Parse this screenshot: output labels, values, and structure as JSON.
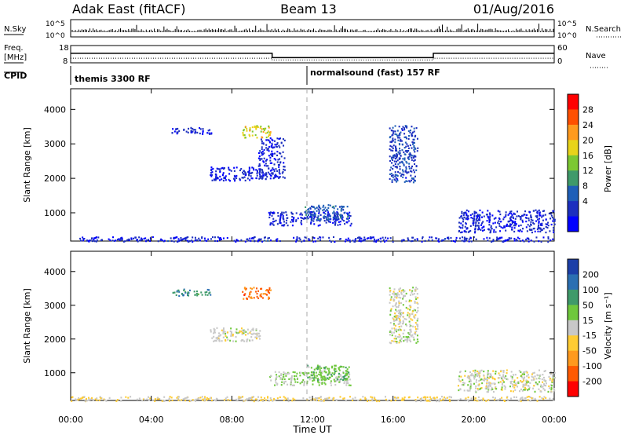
{
  "header": {
    "station": "Adak East (fitACF)",
    "beam": "Beam 13",
    "date": "01/Aug/2016"
  },
  "top_panel": {
    "left_label": "N.Sky",
    "right_label": "N.Search",
    "tick_top": "10^5",
    "tick_bottom": "10^0"
  },
  "freq_panel": {
    "left_label_1": "Freq.",
    "left_label_2": "[MHz]",
    "right_label": "Nave",
    "left_ticks": [
      "18",
      "8"
    ],
    "right_ticks": [
      "60",
      "0"
    ],
    "freq_mhz": {
      "times_h": [
        0,
        10.0,
        10.0,
        18.0,
        18.0,
        24
      ],
      "values": [
        13.5,
        13.5,
        11.0,
        11.0,
        13.5,
        13.5
      ]
    },
    "nave": {
      "times_h": [
        0,
        10.0,
        10.0,
        18.0,
        18.0,
        24
      ],
      "values": [
        16,
        16,
        10,
        10,
        16,
        16
      ]
    }
  },
  "cpid_panel": {
    "label": "CPID",
    "segment_1": "themis 3300 RF",
    "segment_2": "normalsound (fast) 157 RF",
    "boundary_h": 12.0
  },
  "power_colorbar": {
    "label": "Power [dB]",
    "ticks": [
      "28",
      "24",
      "20",
      "16",
      "12",
      "8",
      "4"
    ],
    "colors": [
      "#ff0000",
      "#ff5000",
      "#ff9a1e",
      "#e8d31a",
      "#7cc832",
      "#3f9a6a",
      "#1f5fb8",
      "#1c2fbf",
      "#0000ff"
    ]
  },
  "velocity_colorbar": {
    "label": "Velocity [m s⁻¹]",
    "ticks": [
      "200",
      "100",
      "50",
      "15",
      "-15",
      "-50",
      "-100",
      "-200"
    ],
    "colors": [
      "#1c3fa8",
      "#2b6fb2",
      "#3f9a6a",
      "#6fc83c",
      "#c8c8c8",
      "#ffcc33",
      "#ff9a1e",
      "#ff5a00",
      "#ff0000"
    ]
  },
  "x_axis": {
    "label": "Time UT",
    "ticks": [
      "00:00",
      "04:00",
      "08:00",
      "12:00",
      "16:00",
      "20:00",
      "00:00"
    ]
  },
  "chart_data": [
    {
      "type": "heatmap",
      "panel": "power",
      "xlabel": "Time UT",
      "ylabel": "Slant Range [km]",
      "xlim_h": [
        0,
        24
      ],
      "ylim_km": [
        180,
        4600
      ],
      "yticks": [
        1000,
        2000,
        3000,
        4000
      ],
      "clim": [
        0,
        30
      ],
      "clusters": [
        {
          "t": [
            5.0,
            7.0
          ],
          "r": [
            3300,
            3500
          ],
          "v": 4
        },
        {
          "t": [
            8.5,
            9.9
          ],
          "r": [
            3200,
            3550
          ],
          "v": 18
        },
        {
          "t": [
            6.9,
            9.4
          ],
          "r": [
            1950,
            2350
          ],
          "v": 4
        },
        {
          "t": [
            9.3,
            10.6
          ],
          "r": [
            2000,
            3200
          ],
          "v": 4
        },
        {
          "t": [
            9.8,
            13.9
          ],
          "r": [
            650,
            1050
          ],
          "v": 4
        },
        {
          "t": [
            11.6,
            13.8
          ],
          "r": [
            800,
            1250
          ],
          "v": 8
        },
        {
          "t": [
            19.2,
            24.0
          ],
          "r": [
            450,
            1100
          ],
          "v": 4
        },
        {
          "t": [
            15.8,
            17.2
          ],
          "r": [
            1900,
            3550
          ],
          "v": 6
        },
        {
          "t": [
            0.0,
            24.0
          ],
          "r": [
            180,
            320
          ],
          "v": 4
        }
      ]
    },
    {
      "type": "heatmap",
      "panel": "velocity",
      "xlabel": "Time UT",
      "ylabel": "Slant Range [km]",
      "xlim_h": [
        0,
        24
      ],
      "ylim_km": [
        180,
        4600
      ],
      "yticks": [
        1000,
        2000,
        3000,
        4000
      ],
      "clim": [
        -250,
        250
      ],
      "clusters": [
        {
          "t": [
            5.0,
            7.0
          ],
          "r": [
            3300,
            3500
          ],
          "v": 120
        },
        {
          "t": [
            8.5,
            9.9
          ],
          "r": [
            3200,
            3550
          ],
          "v": -150
        },
        {
          "t": [
            6.9,
            9.4
          ],
          "r": [
            1950,
            2350
          ],
          "v": 0
        },
        {
          "t": [
            9.8,
            13.9
          ],
          "r": [
            650,
            1050
          ],
          "v": 30
        },
        {
          "t": [
            11.6,
            13.8
          ],
          "r": [
            800,
            1250
          ],
          "v": 60
        },
        {
          "t": [
            19.2,
            24.0
          ],
          "r": [
            450,
            1100
          ],
          "v": 0
        },
        {
          "t": [
            15.8,
            17.2
          ],
          "r": [
            1900,
            3550
          ],
          "v": 0
        },
        {
          "t": [
            0.0,
            24.0
          ],
          "r": [
            180,
            320
          ],
          "v": -30
        }
      ]
    }
  ]
}
